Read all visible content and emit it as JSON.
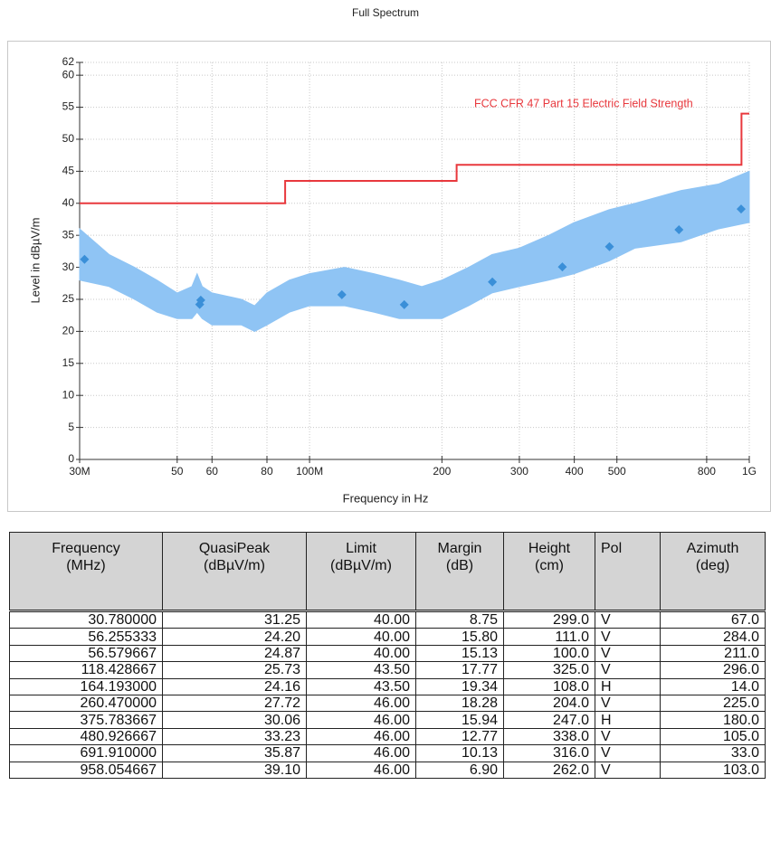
{
  "chart_data": {
    "type": "line",
    "title": "Full Spectrum",
    "xlabel": "Frequency in Hz",
    "ylabel": "Level in dBµV/m",
    "xscale": "log",
    "xlim": [
      30000000,
      1000000000
    ],
    "ylim": [
      0,
      62
    ],
    "xticks": [
      {
        "value": 30000000,
        "label": "30M"
      },
      {
        "value": 50000000,
        "label": "50"
      },
      {
        "value": 60000000,
        "label": "60"
      },
      {
        "value": 80000000,
        "label": "80"
      },
      {
        "value": 100000000,
        "label": "100M"
      },
      {
        "value": 200000000,
        "label": "200"
      },
      {
        "value": 300000000,
        "label": "300"
      },
      {
        "value": 400000000,
        "label": "400"
      },
      {
        "value": 500000000,
        "label": "500"
      },
      {
        "value": 800000000,
        "label": "800"
      },
      {
        "value": 1000000000,
        "label": "1G"
      }
    ],
    "yticks": [
      0,
      5,
      10,
      15,
      20,
      25,
      30,
      35,
      40,
      45,
      50,
      55,
      60,
      62
    ],
    "grid": true,
    "spectrum": {
      "color": "#8fc4f4",
      "x": [
        30000000,
        35000000,
        40000000,
        45000000,
        50000000,
        54000000,
        55500000,
        57000000,
        60000000,
        70000000,
        75000000,
        80000000,
        90000000,
        100000000,
        120000000,
        140000000,
        160000000,
        180000000,
        200000000,
        230000000,
        260000000,
        300000000,
        350000000,
        400000000,
        480000000,
        550000000,
        700000000,
        850000000,
        1000000000
      ],
      "low": [
        28,
        27,
        25,
        23,
        22,
        22,
        23,
        22,
        21,
        21,
        20,
        21,
        23,
        24,
        24,
        23,
        22,
        22,
        22,
        24,
        26,
        27,
        28,
        29,
        31,
        33,
        34,
        36,
        37
      ],
      "high": [
        36,
        32,
        30,
        28,
        26,
        27,
        29,
        27,
        26,
        25,
        24,
        26,
        28,
        29,
        30,
        29,
        28,
        27,
        28,
        30,
        32,
        33,
        35,
        37,
        39,
        40,
        42,
        43,
        45
      ]
    },
    "limit": {
      "name": "FCC CFR 47 Part 15 Electric Field Strength",
      "color": "#e8383d",
      "x": [
        30000000,
        88000000,
        88000000,
        216000000,
        216000000,
        960000000,
        960000000,
        1000000000
      ],
      "values": [
        40,
        40,
        43.5,
        43.5,
        46,
        46,
        54,
        54
      ]
    },
    "markers": {
      "color": "#3a8fd8",
      "x": [
        30780000,
        56255333,
        56579667,
        118428667,
        164193000,
        260470000,
        375783667,
        480926667,
        691910000,
        958054667
      ],
      "values": [
        31.25,
        24.2,
        24.87,
        25.73,
        24.16,
        27.72,
        30.06,
        33.23,
        35.87,
        39.1
      ]
    }
  },
  "table": {
    "header": [
      [
        "Frequency",
        "(MHz)"
      ],
      [
        "QuasiPeak",
        "(dBµV/m)"
      ],
      [
        "Limit",
        "(dBµV/m)"
      ],
      [
        "Margin",
        "(dB)"
      ],
      [
        "Height",
        "(cm)"
      ],
      [
        "Pol"
      ],
      [
        "Azimuth",
        "(deg)"
      ]
    ],
    "rows": [
      [
        "30.780000",
        "31.25",
        "40.00",
        "8.75",
        "299.0",
        "V",
        "67.0"
      ],
      [
        "56.255333",
        "24.20",
        "40.00",
        "15.80",
        "111.0",
        "V",
        "284.0"
      ],
      [
        "56.579667",
        "24.87",
        "40.00",
        "15.13",
        "100.0",
        "V",
        "211.0"
      ],
      [
        "118.428667",
        "25.73",
        "43.50",
        "17.77",
        "325.0",
        "V",
        "296.0"
      ],
      [
        "164.193000",
        "24.16",
        "43.50",
        "19.34",
        "108.0",
        "H",
        "14.0"
      ],
      [
        "260.470000",
        "27.72",
        "46.00",
        "18.28",
        "204.0",
        "V",
        "225.0"
      ],
      [
        "375.783667",
        "30.06",
        "46.00",
        "15.94",
        "247.0",
        "H",
        "180.0"
      ],
      [
        "480.926667",
        "33.23",
        "46.00",
        "12.77",
        "338.0",
        "V",
        "105.0"
      ],
      [
        "691.910000",
        "35.87",
        "46.00",
        "10.13",
        "316.0",
        "V",
        "33.0"
      ],
      [
        "958.054667",
        "39.10",
        "46.00",
        "6.90",
        "262.0",
        "V",
        "103.0"
      ]
    ]
  }
}
